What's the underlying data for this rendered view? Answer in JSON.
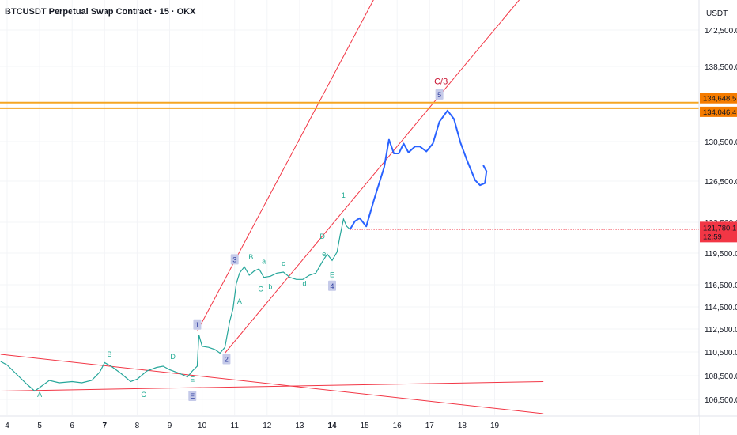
{
  "header": {
    "title": "BTCUSDT Perpetual Swap Contract · 15 · OKX"
  },
  "axis": {
    "currency": "USDT"
  },
  "colors": {
    "candle": "#26a69a",
    "trendline": "#f23645",
    "horizontal": "#f5a623",
    "projection": "#2962ff",
    "wave_teal": "#22ab94",
    "wave_red": "#c8102e",
    "box_bg": "#c5cae9",
    "box_text": "#303f9f",
    "price_tag": "#f23645",
    "level_tag": "#f57c00"
  },
  "chart_data": {
    "type": "line",
    "title": "BTCUSDT Perpetual Swap Contract · 15 · OKX",
    "yaxis_unit": "USDT",
    "ylim": [
      105000,
      144500
    ],
    "y_ticks": [
      142500,
      138500,
      134500,
      130500,
      126500,
      122500,
      119500,
      116500,
      114500,
      112500,
      110500,
      108500,
      106500
    ],
    "y_tick_labels": [
      "142,500.0",
      "138,500.0",
      "",
      "130,500.0",
      "126,500.0",
      "122,500.0",
      "119,500.0",
      "116,500.0",
      "114,500.0",
      "112,500.0",
      "110,500.0",
      "108,500.0",
      "106,500.0"
    ],
    "x_tick_labels": [
      {
        "day": 4,
        "label": "4"
      },
      {
        "day": 5,
        "label": "5"
      },
      {
        "day": 6,
        "label": "6"
      },
      {
        "day": 7,
        "label": "7",
        "bold": true
      },
      {
        "day": 8,
        "label": "8"
      },
      {
        "day": 9,
        "label": "9"
      },
      {
        "day": 10,
        "label": "10"
      },
      {
        "day": 11,
        "label": "11"
      },
      {
        "day": 12,
        "label": "12"
      },
      {
        "day": 13,
        "label": "13"
      },
      {
        "day": 14,
        "label": "14",
        "bold": true
      },
      {
        "day": 15,
        "label": "15"
      },
      {
        "day": 16,
        "label": "16"
      },
      {
        "day": 17,
        "label": "17"
      },
      {
        "day": 18,
        "label": "18"
      },
      {
        "day": 19,
        "label": "19"
      }
    ],
    "price_series": [
      [
        3.8,
        109700
      ],
      [
        4.0,
        109400
      ],
      [
        4.3,
        108600
      ],
      [
        4.6,
        107800
      ],
      [
        4.85,
        107200
      ],
      [
        5.0,
        107500
      ],
      [
        5.3,
        108100
      ],
      [
        5.6,
        107900
      ],
      [
        6.0,
        108000
      ],
      [
        6.3,
        107900
      ],
      [
        6.6,
        108100
      ],
      [
        6.85,
        108800
      ],
      [
        7.0,
        109600
      ],
      [
        7.2,
        109300
      ],
      [
        7.5,
        108700
      ],
      [
        7.8,
        108000
      ],
      [
        8.0,
        108200
      ],
      [
        8.3,
        108900
      ],
      [
        8.6,
        109200
      ],
      [
        8.8,
        109300
      ],
      [
        9.0,
        109000
      ],
      [
        9.3,
        108700
      ],
      [
        9.55,
        108400
      ],
      [
        9.7,
        108900
      ],
      [
        9.85,
        109300
      ],
      [
        9.9,
        112000
      ],
      [
        10.0,
        111000
      ],
      [
        10.2,
        110900
      ],
      [
        10.4,
        110700
      ],
      [
        10.55,
        110400
      ],
      [
        10.7,
        110900
      ],
      [
        10.85,
        113200
      ],
      [
        10.95,
        114300
      ],
      [
        11.05,
        116600
      ],
      [
        11.15,
        117600
      ],
      [
        11.3,
        118200
      ],
      [
        11.45,
        117400
      ],
      [
        11.6,
        117800
      ],
      [
        11.75,
        118000
      ],
      [
        11.9,
        117200
      ],
      [
        12.1,
        117300
      ],
      [
        12.3,
        117600
      ],
      [
        12.5,
        117700
      ],
      [
        12.7,
        117200
      ],
      [
        12.9,
        117000
      ],
      [
        13.1,
        117000
      ],
      [
        13.3,
        117400
      ],
      [
        13.5,
        117600
      ],
      [
        13.7,
        118700
      ],
      [
        13.85,
        119400
      ],
      [
        14.0,
        118800
      ],
      [
        14.15,
        119600
      ],
      [
        14.25,
        121300
      ],
      [
        14.35,
        122800
      ],
      [
        14.45,
        122100
      ],
      [
        14.55,
        121800
      ]
    ],
    "projection_series": [
      [
        14.55,
        121800
      ],
      [
        14.7,
        122600
      ],
      [
        14.85,
        122900
      ],
      [
        14.95,
        122500
      ],
      [
        15.05,
        122100
      ],
      [
        15.3,
        124800
      ],
      [
        15.6,
        127900
      ],
      [
        15.75,
        130700
      ],
      [
        15.9,
        129300
      ],
      [
        16.05,
        129300
      ],
      [
        16.2,
        130300
      ],
      [
        16.35,
        129400
      ],
      [
        16.55,
        130000
      ],
      [
        16.7,
        130000
      ],
      [
        16.9,
        129500
      ],
      [
        17.1,
        130300
      ],
      [
        17.3,
        132600
      ],
      [
        17.55,
        133800
      ],
      [
        17.75,
        132900
      ],
      [
        17.95,
        130400
      ],
      [
        18.15,
        128600
      ],
      [
        18.4,
        126600
      ],
      [
        18.55,
        126100
      ],
      [
        18.7,
        126300
      ],
      [
        18.75,
        127500
      ],
      [
        18.65,
        128100
      ]
    ],
    "trendlines": [
      {
        "name": "upper-channel",
        "from": [
          9.85,
          112300
        ],
        "to": [
          15.3,
          146000
        ]
      },
      {
        "name": "lower-channel",
        "from": [
          10.7,
          110400
        ],
        "to": [
          19.8,
          146000
        ]
      },
      {
        "name": "descending-resistance",
        "from": [
          3.8,
          110300
        ],
        "to": [
          20.5,
          105300
        ]
      },
      {
        "name": "ascending-support",
        "from": [
          3.8,
          107200
        ],
        "to": [
          20.5,
          108000
        ]
      }
    ],
    "horizontal_levels": [
      {
        "value": 134648.5,
        "label": "134,648.5"
      },
      {
        "value": 134046.4,
        "label": "134,046.4"
      }
    ],
    "current_price": {
      "label": "121,780.1",
      "countdown": "12:59"
    },
    "wave_labels": [
      {
        "text": "A",
        "x": 5.0,
        "y": 106700,
        "color": "teal"
      },
      {
        "text": "B",
        "x": 7.15,
        "y": 110100,
        "color": "teal"
      },
      {
        "text": "C",
        "x": 8.2,
        "y": 106700,
        "color": "teal"
      },
      {
        "text": "D",
        "x": 9.1,
        "y": 109900,
        "color": "teal"
      },
      {
        "text": "E",
        "x": 9.7,
        "y": 108000,
        "color": "teal"
      },
      {
        "text": "E",
        "x": 9.7,
        "y": 106700,
        "color": "box"
      },
      {
        "text": "1",
        "x": 9.85,
        "y": 112800,
        "color": "box"
      },
      {
        "text": "2",
        "x": 10.75,
        "y": 109800,
        "color": "box"
      },
      {
        "text": "3",
        "x": 11.0,
        "y": 118800,
        "color": "box"
      },
      {
        "text": "A",
        "x": 11.15,
        "y": 114800,
        "color": "teal"
      },
      {
        "text": "B",
        "x": 11.5,
        "y": 118900,
        "color": "teal"
      },
      {
        "text": "a",
        "x": 11.9,
        "y": 118500,
        "color": "teal"
      },
      {
        "text": "C",
        "x": 11.8,
        "y": 115900,
        "color": "teal"
      },
      {
        "text": "b",
        "x": 12.1,
        "y": 116100,
        "color": "teal"
      },
      {
        "text": "c",
        "x": 12.5,
        "y": 118300,
        "color": "teal"
      },
      {
        "text": "d",
        "x": 13.15,
        "y": 116400,
        "color": "teal"
      },
      {
        "text": "e",
        "x": 13.75,
        "y": 119200,
        "color": "teal"
      },
      {
        "text": "D",
        "x": 13.7,
        "y": 120900,
        "color": "teal"
      },
      {
        "text": "E",
        "x": 14.0,
        "y": 117200,
        "color": "teal"
      },
      {
        "text": "4",
        "x": 14.0,
        "y": 116300,
        "color": "box"
      },
      {
        "text": "1",
        "x": 14.35,
        "y": 124900,
        "color": "teal"
      },
      {
        "text": "5",
        "x": 17.3,
        "y": 135400,
        "color": "box"
      },
      {
        "text": "C/3",
        "x": 17.35,
        "y": 136600,
        "color": "red"
      }
    ]
  }
}
